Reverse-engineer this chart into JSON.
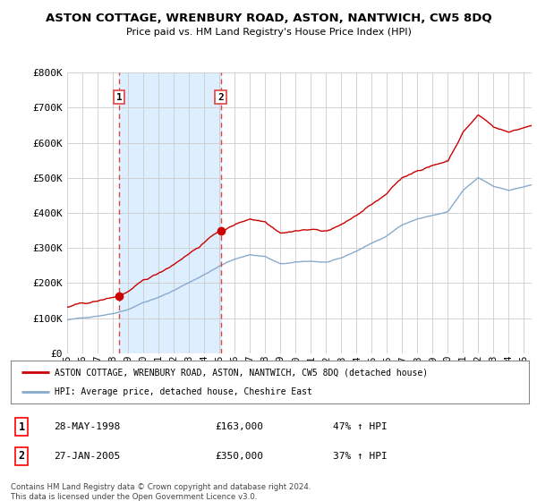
{
  "title": "ASTON COTTAGE, WRENBURY ROAD, ASTON, NANTWICH, CW5 8DQ",
  "subtitle": "Price paid vs. HM Land Registry's House Price Index (HPI)",
  "ylim": [
    0,
    800000
  ],
  "xlim_start": 1995.0,
  "xlim_end": 2025.5,
  "sale1_x": 1998.42,
  "sale1_y": 163000,
  "sale2_x": 2005.08,
  "sale2_y": 350000,
  "sale1_date": "28-MAY-1998",
  "sale1_price": "£163,000",
  "sale1_hpi": "47% ↑ HPI",
  "sale2_date": "27-JAN-2005",
  "sale2_price": "£350,000",
  "sale2_hpi": "37% ↑ HPI",
  "line_color_red": "#cc0000",
  "line_color_blue": "#88aacc",
  "vline_color": "#dd4444",
  "shade_color": "#ddeeff",
  "bg_color": "#ffffff",
  "grid_color": "#cccccc",
  "legend_label_red": "ASTON COTTAGE, WRENBURY ROAD, ASTON, NANTWICH, CW5 8DQ (detached house)",
  "legend_label_blue": "HPI: Average price, detached house, Cheshire East",
  "footer": "Contains HM Land Registry data © Crown copyright and database right 2024.\nThis data is licensed under the Open Government Licence v3.0."
}
